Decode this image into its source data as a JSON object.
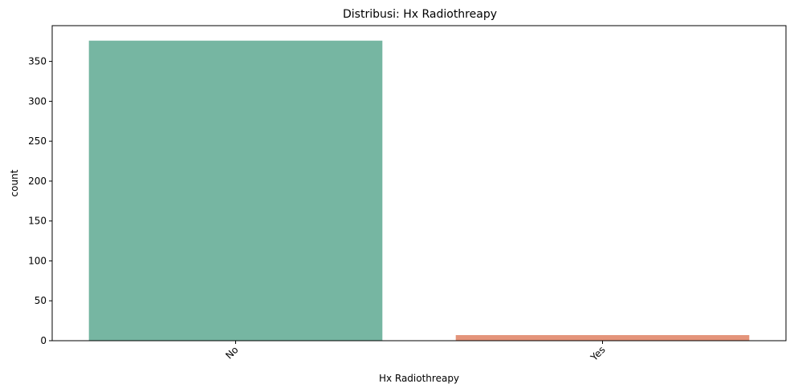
{
  "chart_data": {
    "type": "bar",
    "title": "Distribusi: Hx Radiothreapy",
    "xlabel": "Hx Radiothreapy",
    "ylabel": "count",
    "categories": [
      "No",
      "Yes"
    ],
    "values": [
      376,
      7
    ],
    "colors": [
      "#76b6a2",
      "#e4947a"
    ],
    "yticks": [
      0,
      50,
      100,
      150,
      200,
      250,
      300,
      350
    ],
    "ylim": [
      0,
      394.8
    ],
    "xtick_rotation": 45,
    "grid": false,
    "legend": "none"
  }
}
